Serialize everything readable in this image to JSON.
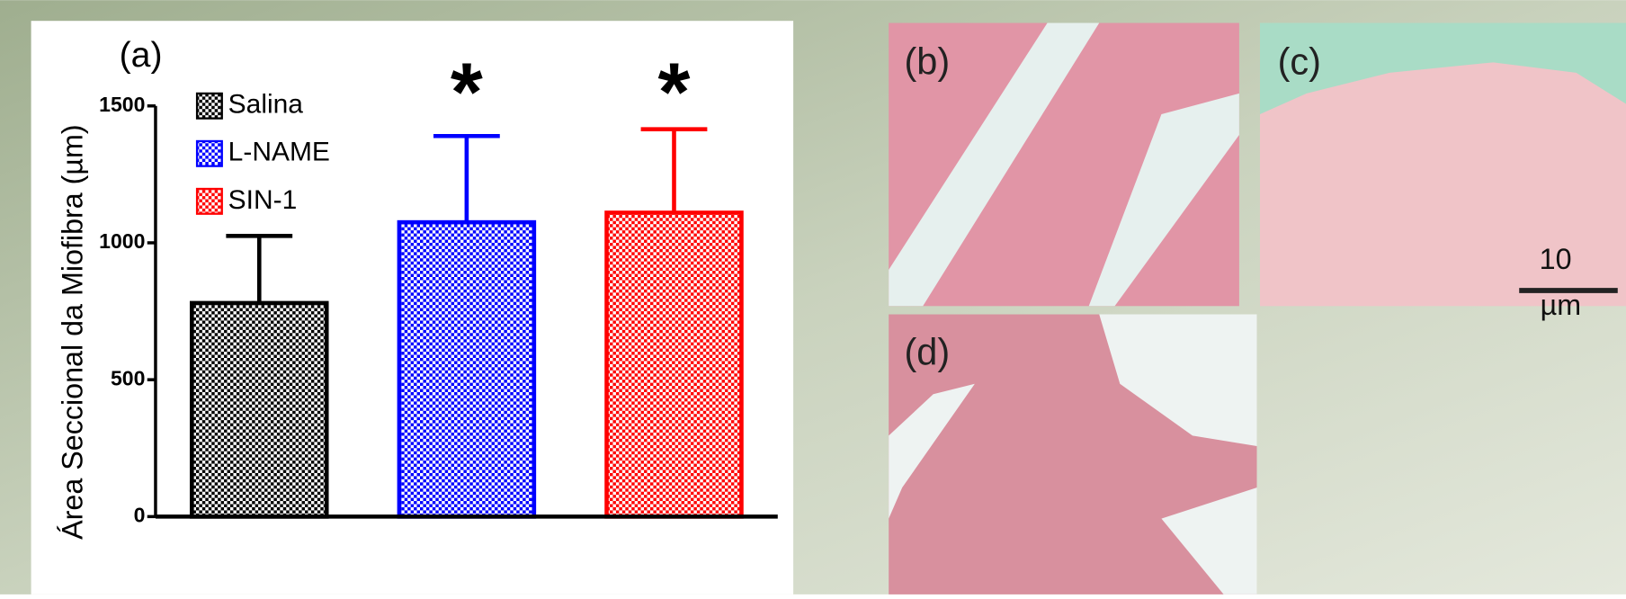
{
  "chart_data": {
    "type": "bar",
    "panel_label": "(a)",
    "ylabel": "Área Seccional da Miofibra  (µm)",
    "ylim": [
      0,
      1500
    ],
    "yticks": [
      0,
      500,
      1000,
      1500
    ],
    "series": [
      {
        "name": "Salina",
        "color": "#000000",
        "values": [
          780
        ],
        "errors": [
          245
        ]
      },
      {
        "name": "L-NAME",
        "color": "#0000ff",
        "values": [
          1075
        ],
        "errors": [
          315
        ],
        "annotation": "*"
      },
      {
        "name": "SIN-1",
        "color": "#ff0000",
        "values": [
          1110
        ],
        "errors": [
          305
        ],
        "annotation": "*"
      }
    ]
  },
  "images": {
    "panels": [
      "(b)",
      "(c)",
      "(d)"
    ],
    "scale_bar": {
      "value": "10",
      "unit": "µm"
    }
  }
}
